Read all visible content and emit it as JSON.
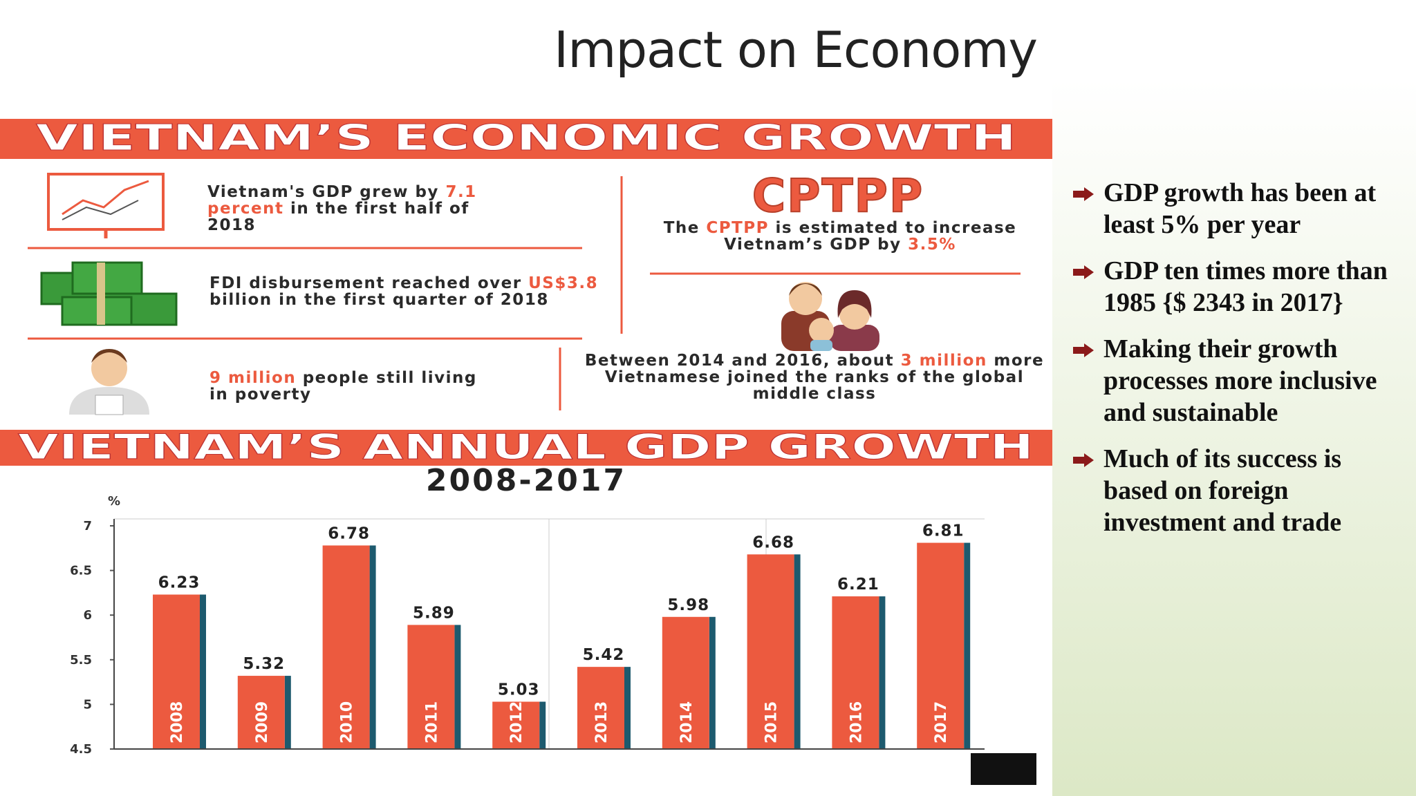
{
  "title": "Impact on Economy",
  "infographic": {
    "banner": "VIETNAM’S ECONOMIC GROWTH",
    "facts": [
      [
        {
          "text": "Vietnam's GDP grew by "
        },
        {
          "text": "7.1 percent",
          "highlight": true
        },
        {
          "text": " in the first half of 2018"
        }
      ],
      [
        {
          "text": "FDI disbursement reached over "
        },
        {
          "text": "US$3.8",
          "highlight": true
        },
        {
          "text": " billion in the first quarter of 2018"
        }
      ],
      [
        {
          "text": "9 million",
          "highlight": true
        },
        {
          "text": " people still living in poverty"
        }
      ]
    ],
    "cptpp_logo": "CPTPP",
    "cptpp": [
      {
        "text": "The "
      },
      {
        "text": "CPTPP",
        "highlight": true
      },
      {
        "text": " is estimated to increase Vietnam’s GDP by "
      },
      {
        "text": "3.5%",
        "highlight": true
      }
    ],
    "middle_class": [
      {
        "text": "Between 2014 and 2016, about "
      },
      {
        "text": "3 million",
        "highlight": true
      },
      {
        "text": " more Vietnamese joined the ranks of the global middle class"
      }
    ],
    "highlight_color": "#ec5a3f"
  },
  "chart_data": {
    "type": "bar",
    "title": "VIETNAM’S ANNUAL GDP GROWTH",
    "subtitle": "2008-2017",
    "y_label": "%",
    "categories": [
      "2008",
      "2009",
      "2010",
      "2011",
      "2012",
      "2013",
      "2014",
      "2015",
      "2016",
      "2017"
    ],
    "values": [
      6.23,
      5.32,
      6.78,
      5.89,
      5.03,
      5.42,
      5.98,
      6.68,
      6.21,
      6.81
    ],
    "color": "#ec5a3f",
    "shadow_color": "#1d5a6e",
    "ylim": [
      4.5,
      7
    ],
    "yticks": [
      4.5,
      5,
      5.5,
      6,
      6.5,
      7
    ],
    "grid": false
  },
  "bullets": [
    "GDP growth has been at least 5% per year",
    "GDP ten times more than 1985 {$ 2343 in 2017}",
    "Making their growth processes more inclusive and sustainable",
    "Much of its success is based on foreign investment and trade"
  ]
}
